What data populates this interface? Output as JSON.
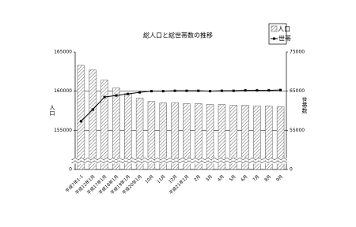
{
  "chart_data": {
    "type": "bar-line",
    "title": "総人口と総世帯数の推移",
    "y_label": "人口",
    "y2_label": "世帯数",
    "categories": [
      "平成7年1-1",
      "平成12年1月",
      "平成17年1月",
      "平成18年1月",
      "平成19年1月",
      "平成20年1月",
      "10月",
      "11月",
      "12月",
      "平成21年1月",
      "2月",
      "3月",
      "4月",
      "5月",
      "6月",
      "7月",
      "8月",
      "9月"
    ],
    "series": [
      {
        "name": "人口",
        "color": "#555555",
        "values": [
          163300,
          162700,
          161400,
          160400,
          159700,
          159100,
          158700,
          158500,
          158500,
          158400,
          158400,
          158300,
          158300,
          158200,
          158200,
          158100,
          158100,
          158000
        ]
      },
      {
        "name": "世帯",
        "color": "#000000",
        "axis": "y2",
        "values": [
          57300,
          60300,
          63500,
          63900,
          64300,
          64700,
          65000,
          65000,
          65100,
          65100,
          65100,
          65000,
          65100,
          65100,
          65200,
          65200,
          65200,
          65300
        ]
      }
    ],
    "ylim": [
      0,
      165000
    ],
    "y_break": [
      0,
      150000
    ],
    "yticks": [
      0,
      155000,
      160000,
      165000
    ],
    "y2lim": [
      0,
      75000
    ],
    "y2_break": [
      0,
      45000
    ],
    "y2ticks": [
      0,
      55000,
      65000,
      75000
    ],
    "grid": true,
    "legend": "top-right"
  }
}
